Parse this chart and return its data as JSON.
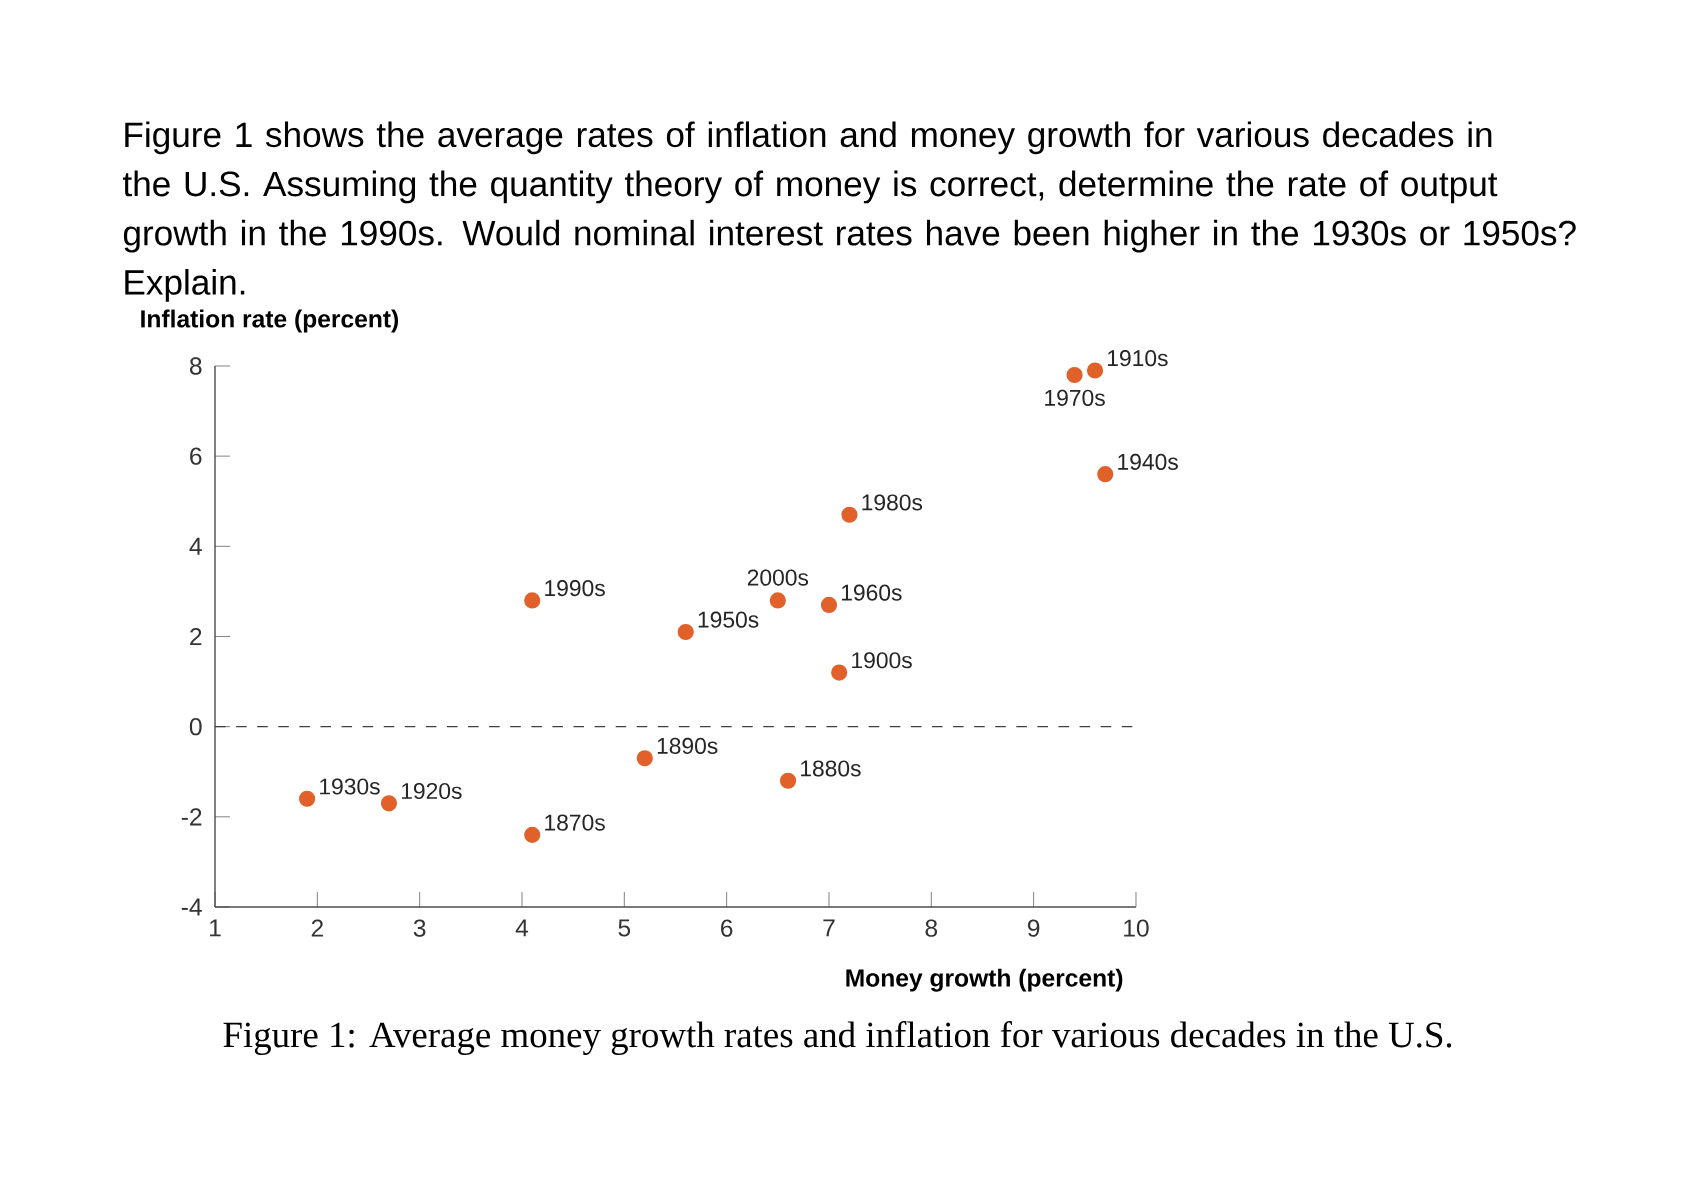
{
  "chart_data": {
    "type": "scatter",
    "title": "Figure 1 shows the average rates of inflation and money growth for various decades in the U.S. Assuming the quantity theory of money is correct, determine the rate of output growth in the 1990s. Would nominal interest rates have been higher in the 1930s or 1950s? Explain.",
    "xlabel": "Money growth (percent)",
    "ylabel": "Inflation rate (percent)",
    "x": [
      1.9,
      2.7,
      4.1,
      4.1,
      5.6,
      5.2,
      6.5,
      6.6,
      7.0,
      7.1,
      7.2,
      9.4,
      9.6,
      9.7
    ],
    "series": [
      {
        "color": "#e0622a",
        "values": [
          -1.6,
          -1.7,
          -2.4,
          2.8,
          2.1,
          -0.7,
          2.8,
          -1.2,
          2.7,
          1.2,
          4.7,
          7.8,
          7.9,
          5.6
        ]
      }
    ],
    "marker": "circle",
    "grid": false,
    "xlim": [
      1,
      10
    ],
    "ylim": [
      -4,
      8
    ],
    "xticks": [
      1,
      2,
      3,
      4,
      5,
      6,
      7,
      8,
      9,
      10
    ],
    "yticks": [
      -4,
      -2,
      0,
      2,
      4,
      6,
      8
    ],
    "ref_lines": [
      {
        "axis": "y",
        "value": 0,
        "line_style": "dashed"
      }
    ],
    "annotations": [
      {
        "text": "1930s",
        "x": 1.9,
        "y": -1.6
      },
      {
        "text": "1920s",
        "x": 2.7,
        "y": -1.7
      },
      {
        "text": "1870s",
        "x": 4.1,
        "y": -2.4
      },
      {
        "text": "1990s",
        "x": 4.1,
        "y": 2.8
      },
      {
        "text": "1950s",
        "x": 5.6,
        "y": 2.1
      },
      {
        "text": "1890s",
        "x": 5.2,
        "y": -0.7
      },
      {
        "text": "2000s",
        "x": 6.5,
        "y": 2.8
      },
      {
        "text": "1880s",
        "x": 6.6,
        "y": -1.2
      },
      {
        "text": "1960s",
        "x": 7.0,
        "y": 2.7
      },
      {
        "text": "1900s",
        "x": 7.1,
        "y": 1.2
      },
      {
        "text": "1980s",
        "x": 7.2,
        "y": 4.7
      },
      {
        "text": "1970s",
        "x": 9.4,
        "y": 7.8
      },
      {
        "text": "1910s",
        "x": 9.6,
        "y": 7.9
      },
      {
        "text": "1940s",
        "x": 9.7,
        "y": 5.6
      },
      "Figure 1: Average money growth rates and inflation for various decades in the U.S."
    ]
  }
}
